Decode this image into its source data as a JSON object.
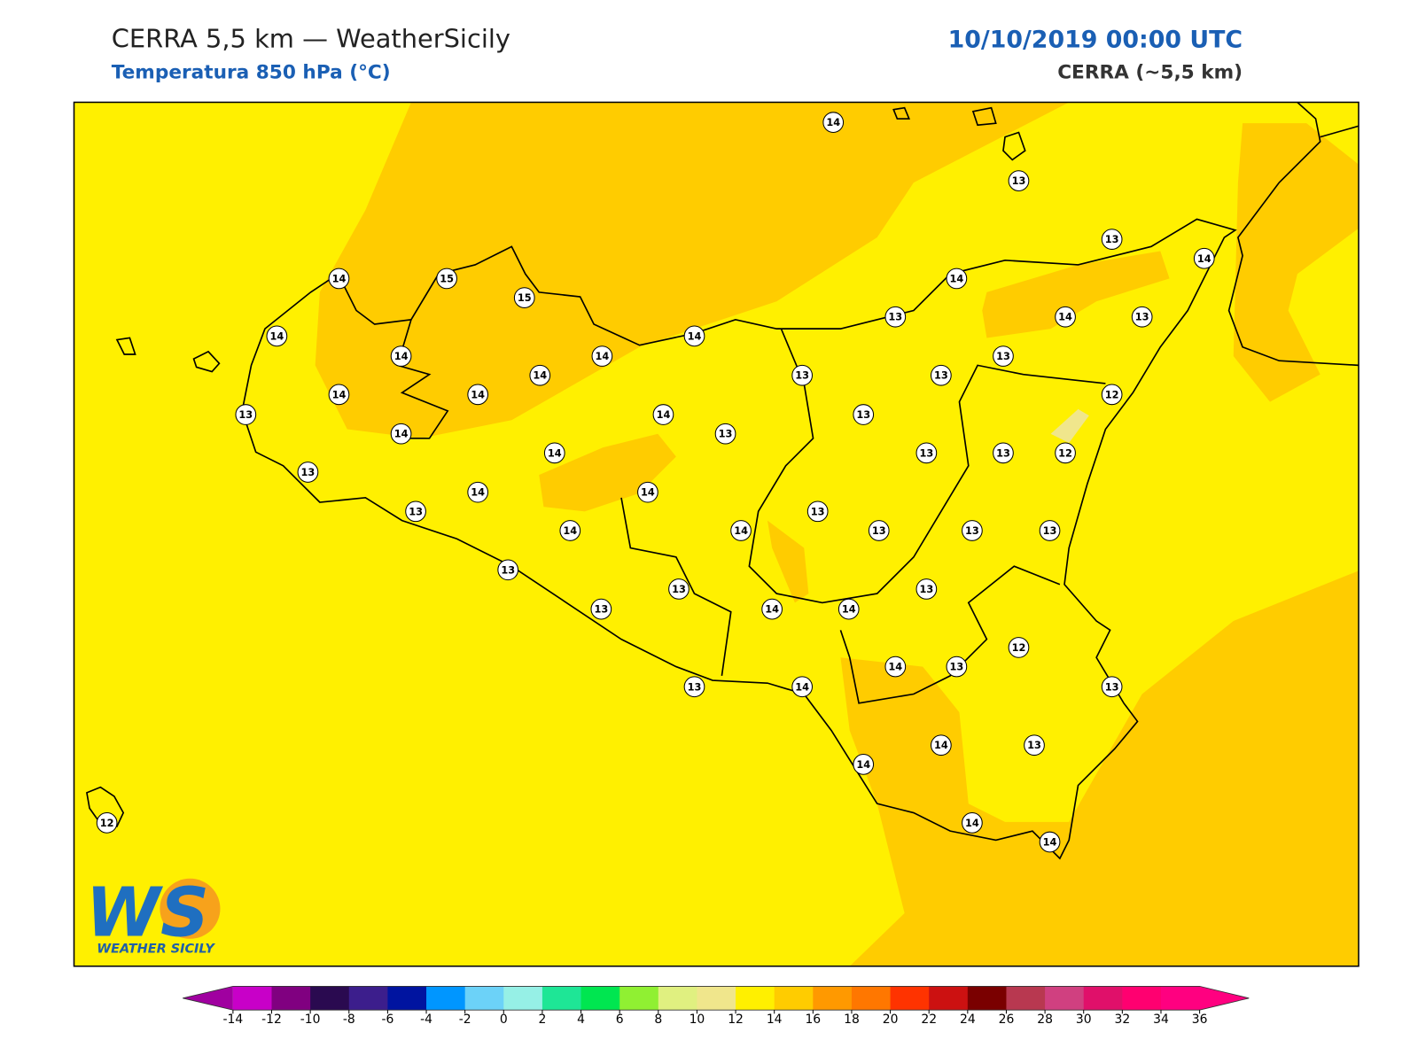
{
  "header": {
    "title": "CERRA 5,5 km — WeatherSicily",
    "subtitle": "Temperatura 850 hPa (°C)",
    "datetime": "10/10/2019 00:00 UTC",
    "model": "CERRA (~5,5 km)"
  },
  "stations": [
    14,
    13,
    13,
    14,
    14,
    15,
    15,
    14,
    13,
    14,
    13,
    14,
    14,
    14,
    14,
    14,
    13,
    13,
    13,
    14,
    14,
    12,
    13,
    14,
    13,
    13,
    14,
    14,
    13,
    13,
    12,
    13,
    14,
    14,
    13,
    13,
    14,
    14,
    13,
    13,
    13,
    13,
    13,
    13,
    13,
    14,
    14,
    12,
    14,
    13,
    13,
    14,
    13,
    14,
    13,
    14,
    14,
    14,
    12
  ],
  "colorbar": {
    "ticks": [
      -14,
      -12,
      -10,
      -8,
      -6,
      -4,
      -2,
      0,
      2,
      4,
      6,
      8,
      10,
      12,
      14,
      16,
      18,
      20,
      22,
      24,
      26,
      28,
      30,
      32,
      34,
      36
    ],
    "colors": [
      "#c800c8",
      "#800080",
      "#2a0a50",
      "#3c1e8c",
      "#0014a0",
      "#0096ff",
      "#6cd2f8",
      "#96f0e6",
      "#1ee696",
      "#00e650",
      "#90f032",
      "#e0f080",
      "#f0e68c",
      "#fff000",
      "#ffcc00",
      "#ff9900",
      "#ff7700",
      "#ff3300",
      "#cc1111",
      "#7a0000",
      "#b83850",
      "#d04080",
      "#e0106a",
      "#ff0070",
      "#ff0080"
    ],
    "under_color": "#a000a0",
    "over_color": "#ff0080"
  },
  "logo": {
    "mark": "WS",
    "name": "WEATHER SICILY"
  }
}
